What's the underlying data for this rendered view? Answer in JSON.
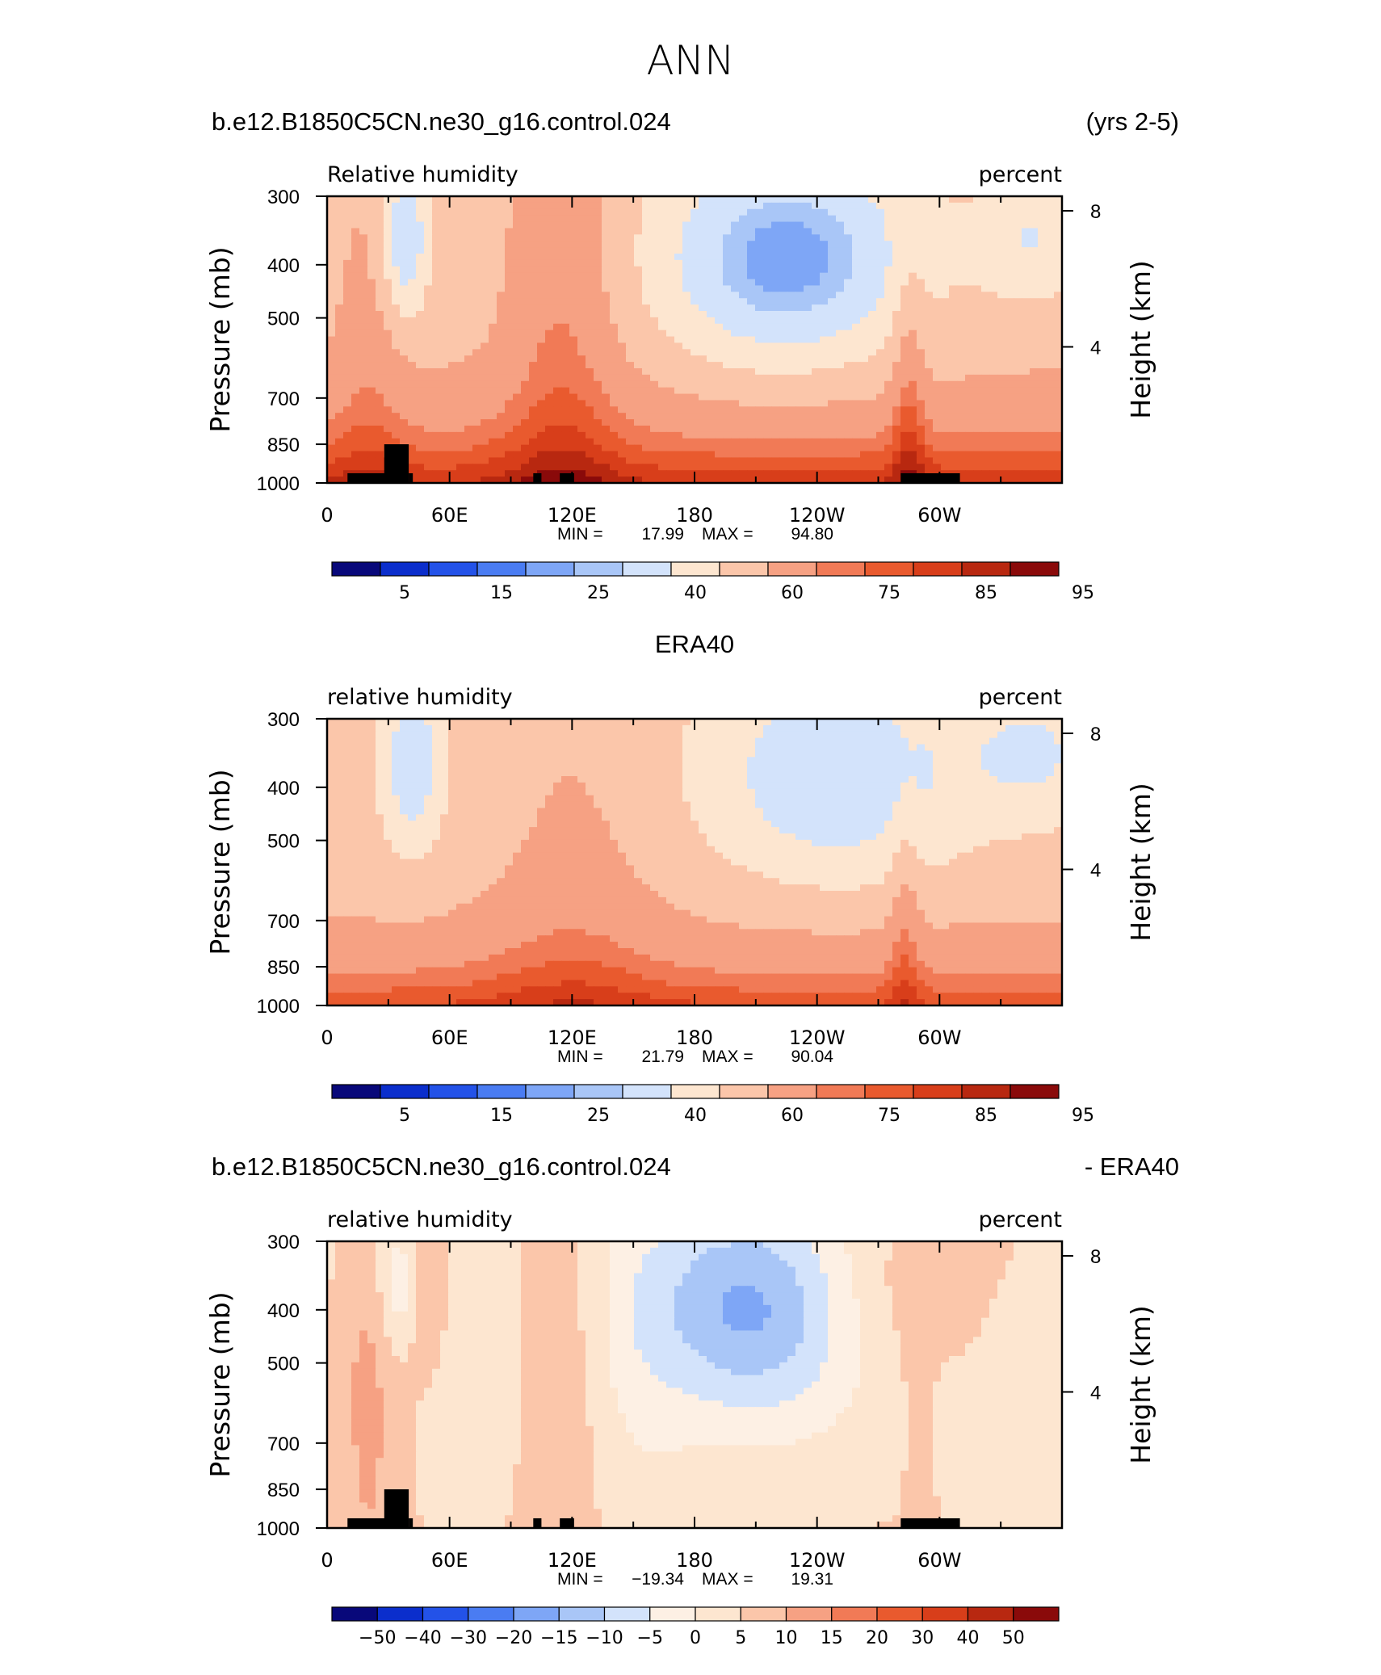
{
  "figure": {
    "title": "ANN"
  },
  "colors": {
    "rh_scale": [
      "#08087a",
      "#0b2ecc",
      "#2352e8",
      "#4a7cf2",
      "#7ea6f6",
      "#a9c6f7",
      "#d3e3fb",
      "#fde6d0",
      "#fbc6aa",
      "#f6a183",
      "#f17a56",
      "#e95a2e",
      "#d83e1a",
      "#b82810",
      "#8a0a0a"
    ],
    "diff_scale": [
      "#08087a",
      "#0b2ecc",
      "#2352e8",
      "#4a7cf2",
      "#7ea6f6",
      "#a9c6f7",
      "#d3e3fb",
      "#fdf0e4",
      "#fde6d0",
      "#fbc6aa",
      "#f6a183",
      "#f17a56",
      "#e95a2e",
      "#d83e1a",
      "#b82810",
      "#8a0a0a"
    ],
    "topography": "#000000"
  },
  "chart_data": [
    {
      "type": "heatmap",
      "title_left": "b.e12.B1850C5CN.ne30_g16.control.024",
      "title_right": "(yrs 2-5)",
      "subtitle_left": "Relative humidity",
      "subtitle_right": "percent",
      "ylabel": "Pressure (mb)",
      "ylabel_right": "Height (km)",
      "x_ticks": [
        "0",
        "60E",
        "120E",
        "180",
        "120W",
        "60W"
      ],
      "y_ticks": [
        "300",
        "400",
        "500",
        "700",
        "850",
        "1000"
      ],
      "y_right_ticks": [
        "8",
        "4"
      ],
      "stats": {
        "min_label": "MIN =",
        "min": "17.99",
        "max_label": "MAX =",
        "max": "94.80"
      },
      "colorbar_labels": [
        "5",
        "15",
        "25",
        "40",
        "60",
        "75",
        "85",
        "95"
      ],
      "xlim": [
        0,
        360
      ],
      "ylim": [
        1000,
        300
      ],
      "field": "model",
      "topography": true
    },
    {
      "type": "heatmap",
      "title_center": "ERA40",
      "subtitle_left": "relative humidity",
      "subtitle_right": "percent",
      "ylabel": "Pressure (mb)",
      "ylabel_right": "Height (km)",
      "x_ticks": [
        "0",
        "60E",
        "120E",
        "180",
        "120W",
        "60W"
      ],
      "y_ticks": [
        "300",
        "400",
        "500",
        "700",
        "850",
        "1000"
      ],
      "y_right_ticks": [
        "8",
        "4"
      ],
      "stats": {
        "min_label": "MIN =",
        "min": "21.79",
        "max_label": "MAX =",
        "max": "90.04"
      },
      "colorbar_labels": [
        "5",
        "15",
        "25",
        "40",
        "60",
        "75",
        "85",
        "95"
      ],
      "xlim": [
        0,
        360
      ],
      "ylim": [
        1000,
        300
      ],
      "field": "obs",
      "topography": false
    },
    {
      "type": "heatmap",
      "title_left": "b.e12.B1850C5CN.ne30_g16.control.024",
      "title_right": "- ERA40",
      "subtitle_left": "relative humidity",
      "subtitle_right": "percent",
      "ylabel": "Pressure (mb)",
      "ylabel_right": "Height (km)",
      "x_ticks": [
        "0",
        "60E",
        "120E",
        "180",
        "120W",
        "60W"
      ],
      "y_ticks": [
        "300",
        "400",
        "500",
        "700",
        "850",
        "1000"
      ],
      "y_right_ticks": [
        "8",
        "4"
      ],
      "stats": {
        "min_label": "MIN =",
        "min": "−19.34",
        "max_label": "MAX =",
        "max": "19.31"
      },
      "colorbar_labels": [
        "−50",
        "−40",
        "−30",
        "−20",
        "−15",
        "−10",
        "−5",
        "0",
        "5",
        "10",
        "15",
        "20",
        "30",
        "40",
        "50"
      ],
      "xlim": [
        0,
        360
      ],
      "ylim": [
        1000,
        300
      ],
      "field": "diff",
      "topography": true
    }
  ]
}
